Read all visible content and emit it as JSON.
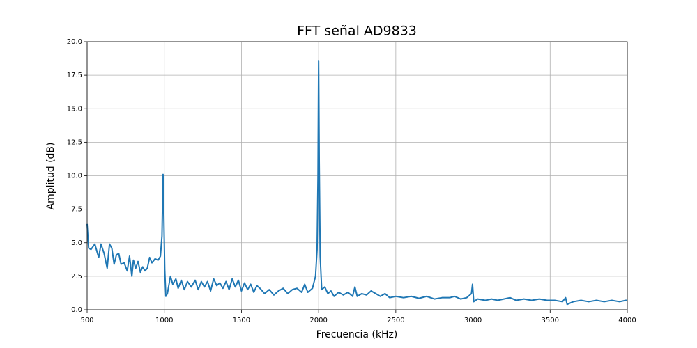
{
  "chart_data": {
    "type": "line",
    "title": "FFT señal AD9833",
    "xlabel": "Frecuencia (kHz)",
    "ylabel": "Amplitud (dB)",
    "color": "#1f77b4",
    "grid": true,
    "xlim": [
      500,
      4000
    ],
    "ylim": [
      0,
      20
    ],
    "xticks": [
      500,
      1000,
      1500,
      2000,
      2500,
      3000,
      3500,
      4000
    ],
    "yticks": [
      {
        "value": 0,
        "label": "0.0"
      },
      2.5,
      {
        "value": 5,
        "label": "5.0"
      },
      7.5,
      {
        "value": 10,
        "label": "10.0"
      },
      12.5,
      {
        "value": 15,
        "label": "15.0"
      },
      17.5,
      {
        "value": 20,
        "label": "20.0"
      }
    ],
    "x": [
      500,
      510,
      525,
      550,
      575,
      590,
      610,
      630,
      645,
      660,
      675,
      690,
      705,
      720,
      740,
      760,
      775,
      790,
      800,
      815,
      830,
      845,
      860,
      875,
      890,
      905,
      920,
      940,
      960,
      975,
      985,
      992,
      997,
      1003,
      1010,
      1020,
      1040,
      1055,
      1075,
      1090,
      1110,
      1130,
      1150,
      1175,
      1200,
      1220,
      1240,
      1260,
      1280,
      1300,
      1320,
      1340,
      1360,
      1380,
      1400,
      1420,
      1440,
      1460,
      1480,
      1500,
      1520,
      1540,
      1560,
      1580,
      1600,
      1620,
      1650,
      1680,
      1710,
      1740,
      1770,
      1800,
      1830,
      1860,
      1890,
      1910,
      1930,
      1960,
      1980,
      1990,
      1996,
      2000,
      2004,
      2010,
      2020,
      2040,
      2060,
      2080,
      2100,
      2130,
      2160,
      2190,
      2220,
      2235,
      2250,
      2280,
      2310,
      2340,
      2370,
      2400,
      2430,
      2460,
      2500,
      2550,
      2600,
      2650,
      2700,
      2750,
      2800,
      2850,
      2880,
      2920,
      2960,
      2990,
      2997,
      3005,
      3030,
      3080,
      3120,
      3160,
      3200,
      3240,
      3280,
      3330,
      3380,
      3430,
      3480,
      3530,
      3580,
      3600,
      3610,
      3650,
      3700,
      3750,
      3800,
      3850,
      3900,
      3950,
      3990,
      4000
    ],
    "values": [
      6.4,
      4.6,
      4.5,
      4.9,
      3.9,
      4.9,
      4.2,
      3.1,
      4.9,
      4.6,
      3.4,
      4.1,
      4.2,
      3.4,
      3.5,
      2.9,
      4.0,
      2.5,
      3.7,
      3.1,
      3.6,
      2.8,
      3.2,
      2.9,
      3.1,
      3.9,
      3.5,
      3.8,
      3.7,
      4.0,
      5.5,
      10.1,
      7,
      3.0,
      1.0,
      1.2,
      2.5,
      1.9,
      2.3,
      1.6,
      2.2,
      1.5,
      2.1,
      1.7,
      2.2,
      1.5,
      2.1,
      1.7,
      2.1,
      1.4,
      2.3,
      1.8,
      2.0,
      1.6,
      2.1,
      1.5,
      2.3,
      1.7,
      2.2,
      1.4,
      2.0,
      1.5,
      1.9,
      1.3,
      1.8,
      1.6,
      1.2,
      1.5,
      1.1,
      1.4,
      1.6,
      1.2,
      1.5,
      1.6,
      1.3,
      1.9,
      1.3,
      1.6,
      2.5,
      4.5,
      10,
      18.6,
      11,
      4,
      1.5,
      1.7,
      1.2,
      1.4,
      1.0,
      1.3,
      1.1,
      1.3,
      1.0,
      1.7,
      1.0,
      1.2,
      1.1,
      1.4,
      1.2,
      1.0,
      1.2,
      0.9,
      1.0,
      0.9,
      1.0,
      0.85,
      1.0,
      0.8,
      0.9,
      0.9,
      1.0,
      0.8,
      0.9,
      1.2,
      1.9,
      0.6,
      0.8,
      0.7,
      0.8,
      0.7,
      0.8,
      0.9,
      0.7,
      0.8,
      0.7,
      0.8,
      0.7,
      0.7,
      0.6,
      0.9,
      0.4,
      0.6,
      0.7,
      0.6,
      0.7,
      0.6,
      0.7,
      0.6,
      0.7,
      0.7
    ]
  }
}
